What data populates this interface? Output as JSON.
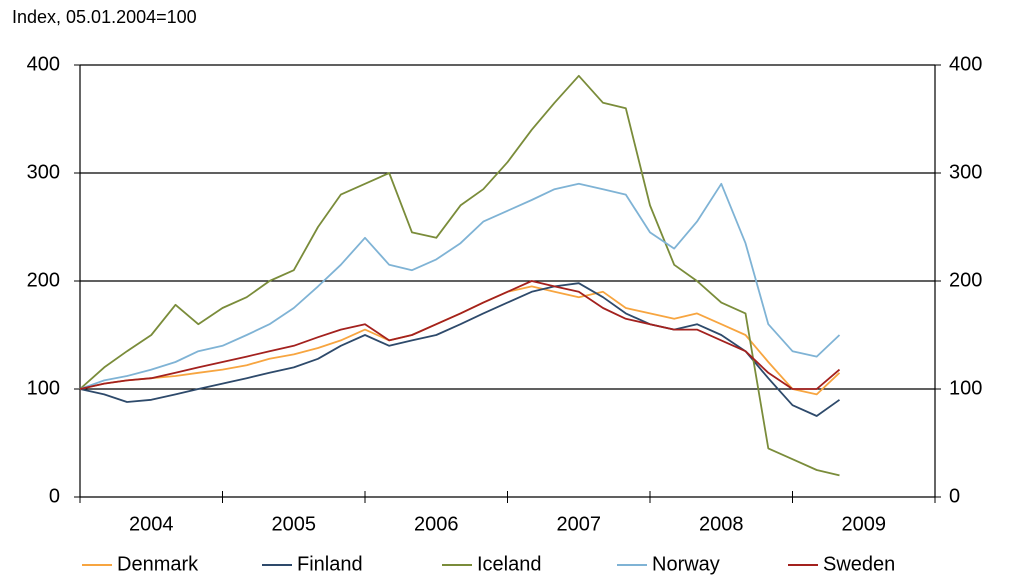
{
  "chart_data": {
    "type": "line",
    "title": "Index, 05.01.2004=100",
    "x": [
      2004,
      2004.17,
      2004.33,
      2004.5,
      2004.67,
      2004.83,
      2005,
      2005.17,
      2005.33,
      2005.5,
      2005.67,
      2005.83,
      2006,
      2006.17,
      2006.33,
      2006.5,
      2006.67,
      2006.83,
      2007,
      2007.17,
      2007.33,
      2007.5,
      2007.67,
      2007.83,
      2008,
      2008.17,
      2008.33,
      2008.5,
      2008.67,
      2008.83,
      2009,
      2009.17,
      2009.33
    ],
    "series": [
      {
        "name": "Denmark",
        "color": "#f7a540",
        "values": [
          100,
          105,
          108,
          110,
          112,
          115,
          118,
          122,
          128,
          132,
          138,
          145,
          155,
          145,
          150,
          160,
          170,
          180,
          190,
          195,
          190,
          185,
          190,
          175,
          170,
          165,
          170,
          160,
          150,
          125,
          100,
          95,
          115
        ]
      },
      {
        "name": "Finland",
        "color": "#2e4a6b",
        "values": [
          100,
          95,
          88,
          90,
          95,
          100,
          105,
          110,
          115,
          120,
          128,
          140,
          150,
          140,
          145,
          150,
          160,
          170,
          180,
          190,
          195,
          198,
          185,
          170,
          160,
          155,
          160,
          150,
          135,
          110,
          85,
          75,
          90
        ]
      },
      {
        "name": "Iceland",
        "color": "#7a8c3a",
        "values": [
          100,
          120,
          135,
          150,
          178,
          160,
          175,
          185,
          200,
          210,
          250,
          280,
          290,
          300,
          245,
          240,
          270,
          285,
          310,
          340,
          365,
          390,
          365,
          360,
          270,
          215,
          200,
          180,
          170,
          45,
          35,
          25,
          20
        ]
      },
      {
        "name": "Norway",
        "color": "#7fb3d5",
        "values": [
          100,
          108,
          112,
          118,
          125,
          135,
          140,
          150,
          160,
          175,
          195,
          215,
          240,
          215,
          210,
          220,
          235,
          255,
          265,
          275,
          285,
          290,
          285,
          280,
          245,
          230,
          255,
          290,
          235,
          160,
          135,
          130,
          150
        ]
      },
      {
        "name": "Sweden",
        "color": "#a3211e",
        "values": [
          100,
          105,
          108,
          110,
          115,
          120,
          125,
          130,
          135,
          140,
          148,
          155,
          160,
          145,
          150,
          160,
          170,
          180,
          190,
          200,
          195,
          190,
          175,
          165,
          160,
          155,
          155,
          145,
          135,
          115,
          100,
          100,
          118
        ]
      }
    ],
    "xlim": [
      2004,
      2010
    ],
    "xticks": [
      2004,
      2005,
      2006,
      2007,
      2008,
      2009,
      2010
    ],
    "year_labels": [
      2004,
      2005,
      2006,
      2007,
      2008,
      2009
    ],
    "ylim": [
      0,
      400
    ],
    "yticks": [
      0,
      100,
      200,
      300,
      400
    ],
    "y2lim": [
      0,
      400
    ],
    "y2ticks": [
      0,
      100,
      200,
      300,
      400
    ],
    "grid": true
  }
}
